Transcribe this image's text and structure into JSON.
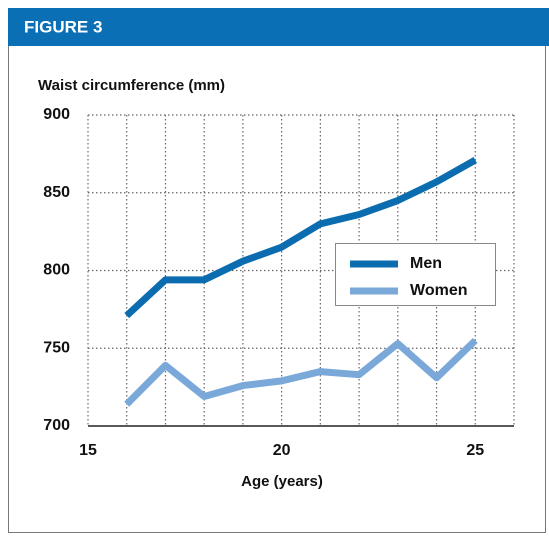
{
  "header": {
    "title": "FIGURE 3"
  },
  "chart_data": {
    "type": "line",
    "y_label": "Waist circumference (mm)",
    "x_label": "Age (years)",
    "x": [
      16,
      17,
      18,
      19,
      20,
      21,
      22,
      23,
      24,
      25
    ],
    "series": [
      {
        "name": "Men",
        "color": "#0b6db0",
        "values": [
          771,
          794,
          794,
          806,
          815,
          830,
          836,
          845,
          857,
          871
        ]
      },
      {
        "name": "Women",
        "color": "#7aa9d9",
        "values": [
          714,
          739,
          719,
          726,
          729,
          735,
          733,
          753,
          731,
          755
        ]
      }
    ],
    "xlim": [
      15,
      26
    ],
    "xticks": [
      15,
      20,
      25
    ],
    "ylim": [
      700,
      900
    ],
    "yticks": [
      700,
      750,
      800,
      850,
      900
    ],
    "grid": true,
    "legend": "right"
  }
}
